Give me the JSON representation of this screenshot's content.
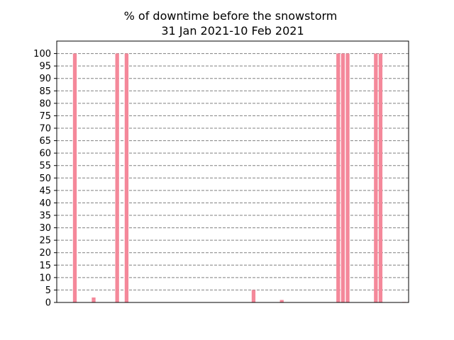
{
  "colors": {
    "bar": "#f4889a",
    "grid": "#808080",
    "axis": "#000000"
  },
  "chart_data": {
    "type": "bar",
    "title": "% of downtime before the snowstorm",
    "subtitle": "31 Jan 2021-10 Feb 2021",
    "xlabel": "",
    "ylabel": "",
    "ylim": [
      0,
      105
    ],
    "yticks": [
      0,
      5,
      10,
      15,
      20,
      25,
      30,
      35,
      40,
      45,
      50,
      55,
      60,
      65,
      70,
      75,
      80,
      85,
      90,
      95,
      100
    ],
    "x_tick_labels": "none",
    "grid": "horizontal dashed",
    "legend": "none",
    "values": [
      100,
      0,
      0,
      0,
      2,
      0,
      0,
      0,
      0,
      100,
      0,
      100,
      0,
      0,
      0,
      0,
      0,
      0,
      0,
      0,
      0,
      0,
      0,
      0,
      0,
      0,
      0,
      0,
      0,
      0,
      0,
      0,
      0,
      0,
      0,
      0,
      0,
      0,
      5,
      0,
      0,
      0,
      0,
      0,
      1,
      0,
      0,
      0,
      0,
      0,
      0,
      0,
      0,
      0,
      0,
      0,
      100,
      100,
      100,
      0,
      0,
      0,
      0,
      0,
      100,
      100,
      0,
      0,
      0,
      0,
      0.2
    ]
  }
}
